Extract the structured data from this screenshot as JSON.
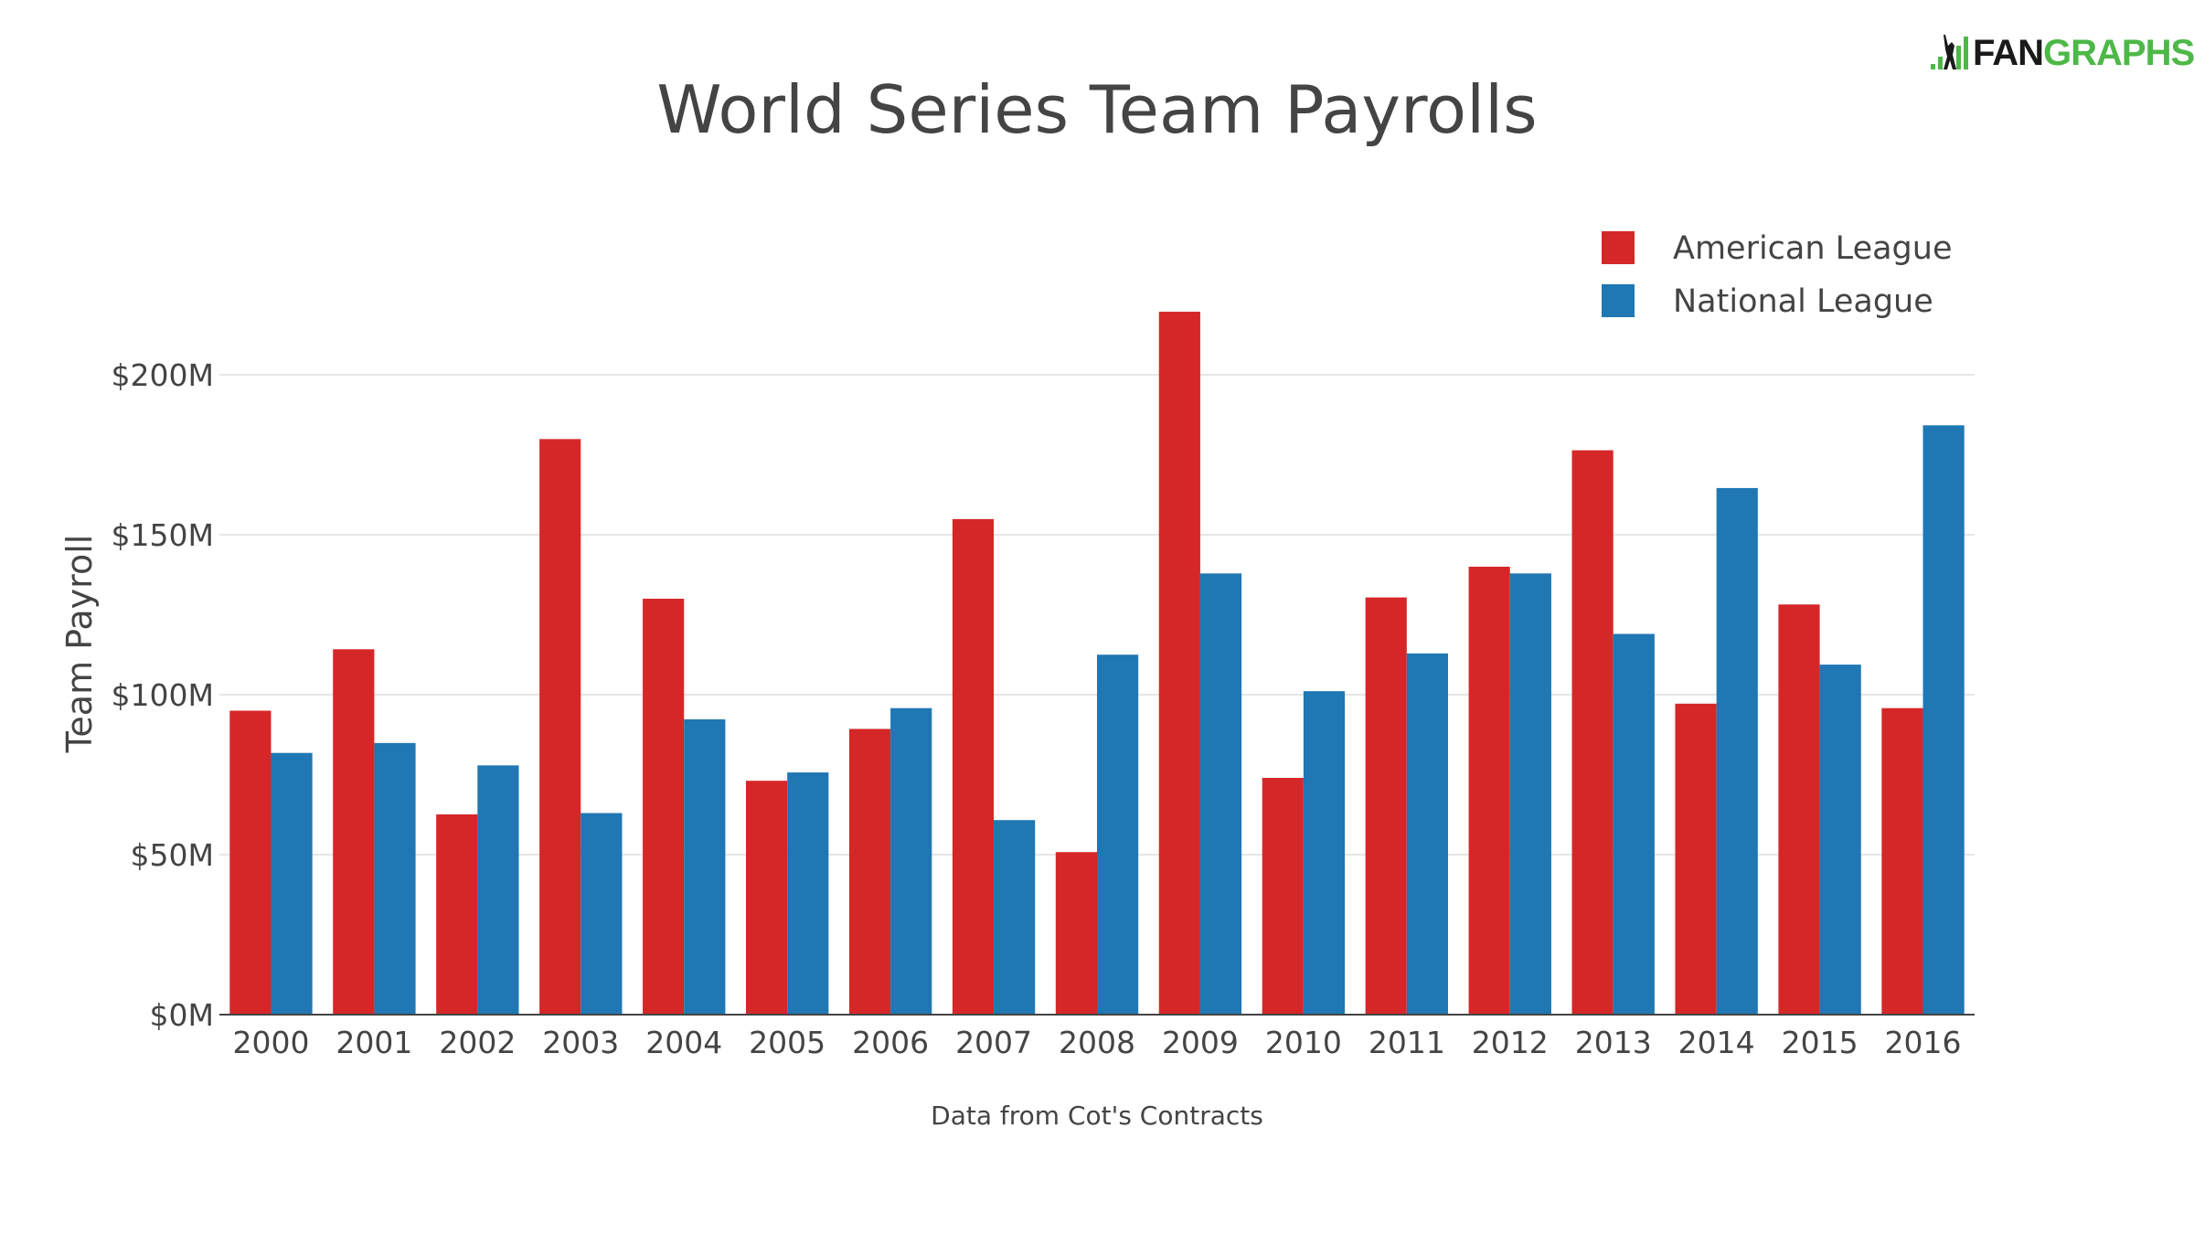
{
  "logo": {
    "part1": "FAN",
    "part2": "GRAPHS",
    "text": "FANGRAPHS"
  },
  "chart_data": {
    "type": "bar",
    "title": "World Series Team Payrolls",
    "xlabel": "",
    "ylabel": "Team Payroll",
    "source_note": "Data from Cot's Contracts",
    "categories": [
      "2000",
      "2001",
      "2002",
      "2003",
      "2004",
      "2005",
      "2006",
      "2007",
      "2008",
      "2009",
      "2010",
      "2011",
      "2012",
      "2013",
      "2014",
      "2015",
      "2016"
    ],
    "series": [
      {
        "name": "American League",
        "color": "#d62728",
        "values": [
          95.0,
          114.2,
          62.6,
          179.9,
          130.0,
          73.1,
          89.3,
          154.9,
          50.8,
          219.7,
          74.0,
          130.4,
          140.0,
          176.4,
          97.2,
          128.2,
          95.8
        ]
      },
      {
        "name": "National League",
        "color": "#1f77b4",
        "values": [
          81.8,
          84.9,
          77.9,
          63.0,
          92.3,
          75.7,
          95.8,
          60.8,
          112.5,
          137.9,
          101.1,
          112.9,
          137.9,
          119.0,
          164.6,
          109.4,
          184.2
        ]
      }
    ],
    "yticks": [
      0,
      50,
      100,
      150,
      200
    ],
    "ytick_labels": [
      "$0M",
      "$50M",
      "$100M",
      "$150M",
      "$200M"
    ],
    "ylim": [
      0,
      230
    ],
    "unit": "millions USD",
    "grid": true,
    "legend_placement": "top-right",
    "gridline_color": "#e6e6e6"
  }
}
